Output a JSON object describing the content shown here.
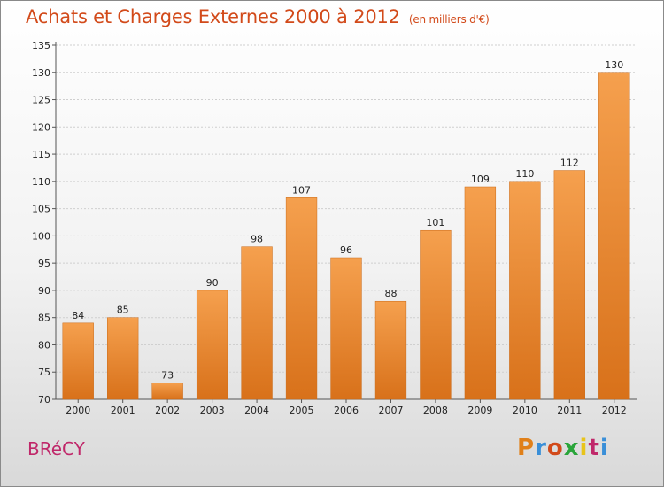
{
  "header": {
    "title": "Achats et Charges Externes 2000 à 2012",
    "unit": "(en milliers d'€)"
  },
  "footer": {
    "place": "BRéCY",
    "logo": "Proxiti"
  },
  "colors": {
    "title": "#d24a1a",
    "place": "#c0286a",
    "bar_top": "#f5a04e",
    "bar_bottom": "#d8711a",
    "logo_letters": [
      "#e0801a",
      "#3a8fd8",
      "#d24a1a",
      "#2aa53a",
      "#e8c41a",
      "#c0286a",
      "#3a8fd8"
    ]
  },
  "chart_data": {
    "type": "bar",
    "categories": [
      "2000",
      "2001",
      "2002",
      "2003",
      "2004",
      "2005",
      "2006",
      "2007",
      "2008",
      "2009",
      "2010",
      "2011",
      "2012"
    ],
    "values": [
      84,
      85,
      73,
      90,
      98,
      107,
      96,
      88,
      101,
      109,
      110,
      112,
      130
    ],
    "ylim": [
      70,
      135
    ],
    "yticks": [
      70,
      75,
      80,
      85,
      90,
      95,
      100,
      105,
      110,
      115,
      120,
      125,
      130,
      135
    ],
    "grid": true
  }
}
